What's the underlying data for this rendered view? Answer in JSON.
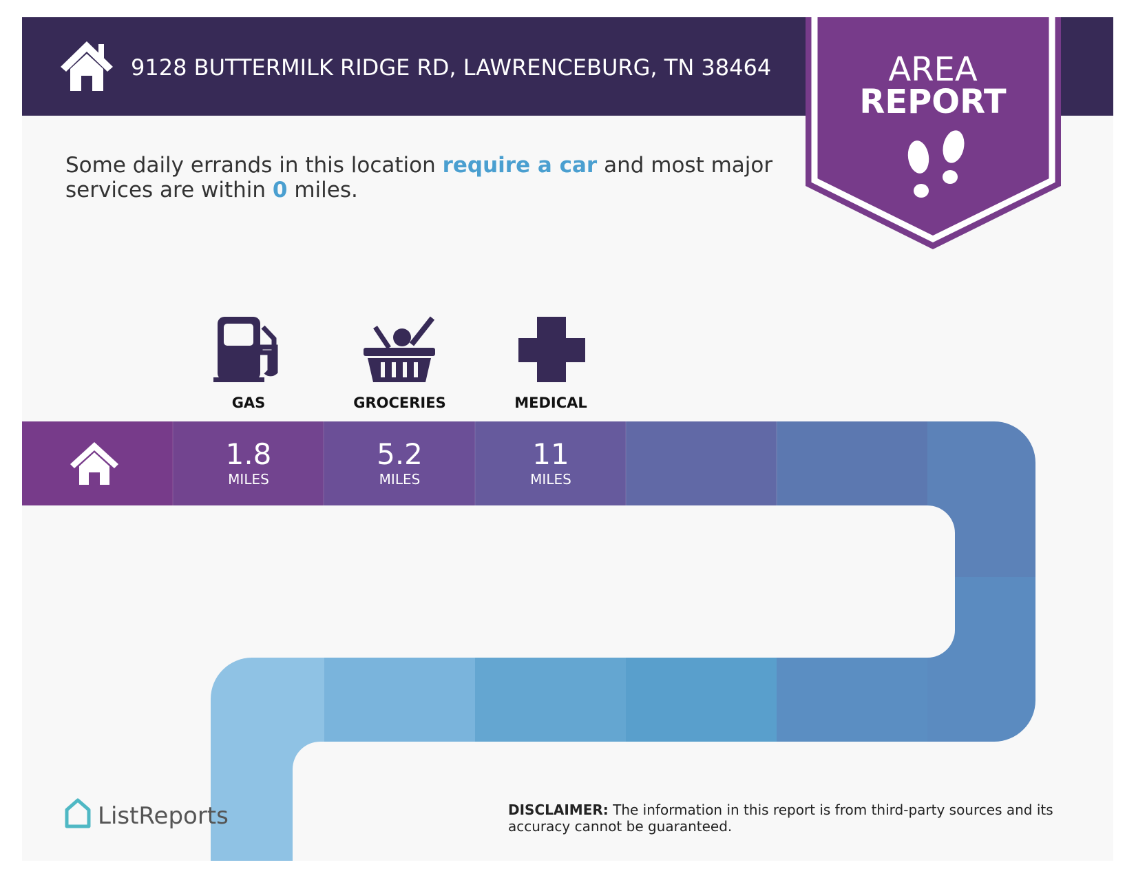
{
  "header": {
    "address": "9128 BUTTERMILK RIDGE RD, LAWRENCEBURG, TN 38464",
    "badge": [
      "AREA",
      "REPORT"
    ]
  },
  "summary": {
    "line1": [
      "Some daily errands in this location ",
      "require a car",
      " and most major"
    ],
    "line2": [
      "services are within ",
      "0",
      " miles."
    ]
  },
  "services": [
    {
      "label": "GAS",
      "distance": "1.8",
      "unit": "MILES"
    },
    {
      "label": "GROCERIES",
      "distance": "5.2",
      "unit": "MILES"
    },
    {
      "label": "MEDICAL",
      "distance": "11",
      "unit": "MILES"
    }
  ],
  "footer": {
    "logo": "ListReports",
    "disclaimer_label": "DISCLAIMER:",
    "disclaimer": [
      "The information in this report is from third-party sources and its",
      "accuracy cannot be guaranteed."
    ]
  }
}
